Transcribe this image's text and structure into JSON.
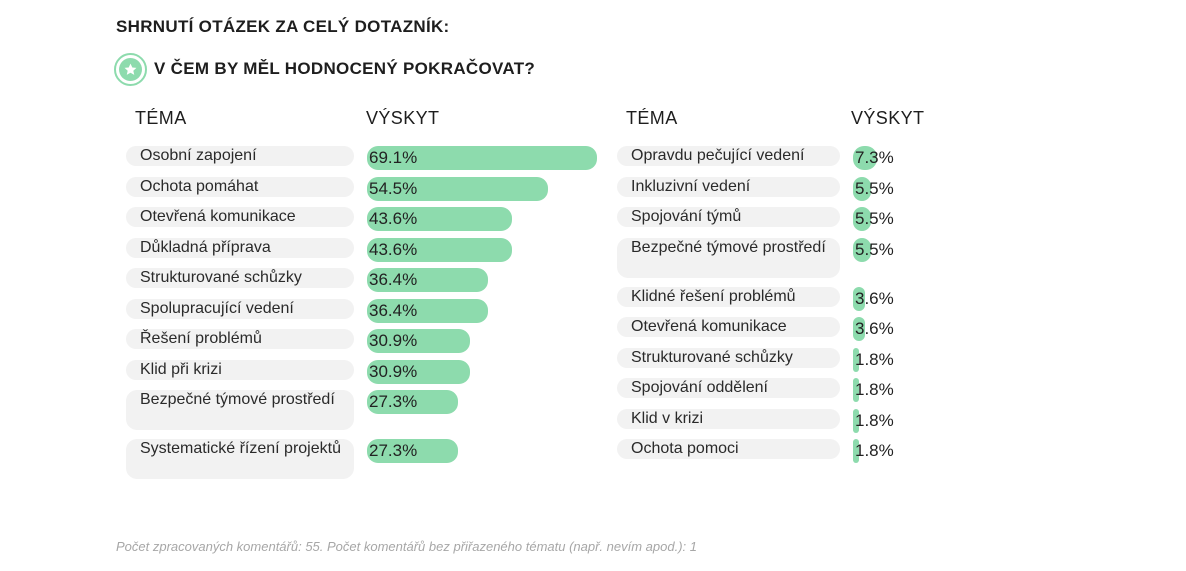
{
  "page_title": "SHRNUTÍ OTÁZEK ZA CELÝ DOTAZNÍK:",
  "question": {
    "icon": "star-icon",
    "text": "V ČEM BY MĚL HODNOCENÝ POKRAČOVAT?"
  },
  "colors": {
    "bar": "#8ddbad",
    "pill": "#f2f2f2",
    "footnote": "#a7a7a7"
  },
  "chart_data": [
    {
      "type": "bar",
      "orientation": "horizontal",
      "headers": {
        "theme": "TÉMA",
        "occurrence": "VÝSKYT"
      },
      "unit": "%",
      "xlim": [
        0,
        69.1
      ],
      "categories": [
        "Osobní zapojení",
        "Ochota pomáhat",
        "Otevřená komunikace",
        "Důkladná příprava",
        "Strukturované schůzky",
        "Spolupracující vedení",
        "Řešení problémů",
        "Klid při krizi",
        "Bezpečné týmové prostředí",
        "Systematické řízení projektů"
      ],
      "values": [
        69.1,
        54.5,
        43.6,
        43.6,
        36.4,
        36.4,
        30.9,
        30.9,
        27.3,
        27.3
      ],
      "labels": [
        "69.1%",
        "54.5%",
        "43.6%",
        "43.6%",
        "36.4%",
        "36.4%",
        "30.9%",
        "30.9%",
        "27.3%",
        "27.3%"
      ]
    },
    {
      "type": "bar",
      "orientation": "horizontal",
      "headers": {
        "theme": "TÉMA",
        "occurrence": "VÝSKYT"
      },
      "unit": "%",
      "xlim": [
        0,
        69.1
      ],
      "categories": [
        "Opravdu pečující vedení",
        "Inkluzivní vedení",
        "Spojování týmů",
        "Bezpečné týmové prostředí",
        "Klidné řešení problémů",
        "Otevřená komunikace",
        "Strukturované schůzky",
        "Spojování oddělení",
        "Klid v krizi",
        "Ochota pomoci"
      ],
      "values": [
        7.3,
        5.5,
        5.5,
        5.5,
        3.6,
        3.6,
        1.8,
        1.8,
        1.8,
        1.8
      ],
      "labels": [
        "7.3%",
        "5.5%",
        "5.5%",
        "5.5%",
        "3.6%",
        "3.6%",
        "1.8%",
        "1.8%",
        "1.8%",
        "1.8%"
      ]
    }
  ],
  "footnote": "Počet zpracovaných komentářů: 55. Počet komentářů bez přiřazeného tématu (např. nevím apod.): 1"
}
